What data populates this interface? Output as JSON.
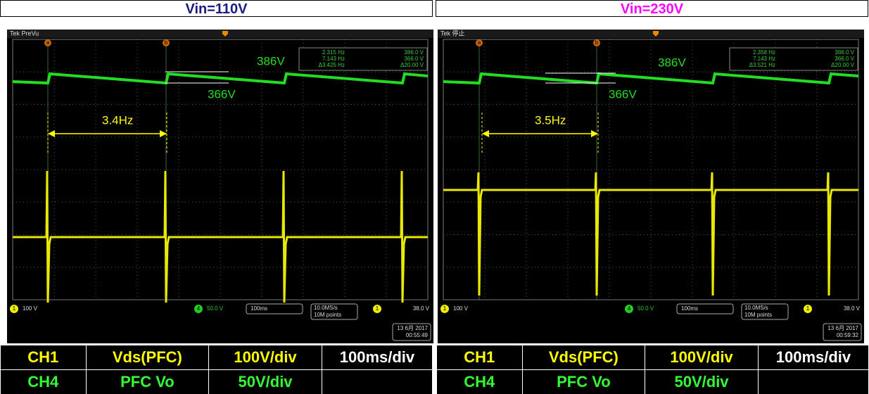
{
  "header": [
    "Vin=110V",
    "Vin=230V"
  ],
  "panels": [
    {
      "status": "Tek PreVu",
      "cursor_labels": [
        "a",
        "b"
      ],
      "cursor_readout": [
        [
          "2.315 Hz",
          "386.0 V"
        ],
        [
          "7.143 Hz",
          "366.0 V"
        ],
        [
          "Δ3.425 Hz",
          "Δ20.00 V"
        ]
      ],
      "annotations": {
        "upper": "386V",
        "lower": "366V",
        "freq": "3.4Hz"
      },
      "bottom": {
        "ch1_badge": "1",
        "ch1": "100 V",
        "ch4_badge": "4",
        "ch4": "50.0 V",
        "timebase": "100ms",
        "rate": "10.0MS/s",
        "points": "10M points",
        "trigger_badge": "1",
        "trigger": "38.0 V",
        "date": "13 6月 2017",
        "time": "00:55:49"
      }
    },
    {
      "status": "Tek 停止",
      "cursor_labels": [
        "a",
        "b"
      ],
      "cursor_readout": [
        [
          "2.358 Hz",
          "386.0 V"
        ],
        [
          "7.143 Hz",
          "366.0 V"
        ],
        [
          "Δ3.521 Hz",
          "Δ20.00 V"
        ]
      ],
      "annotations": {
        "upper": "386V",
        "lower": "366V",
        "freq": "3.5Hz"
      },
      "bottom": {
        "ch1_badge": "1",
        "ch1": "100 V",
        "ch4_badge": "4",
        "ch4": "50.0 V",
        "timebase": "100ms",
        "rate": "10.0MS/s",
        "points": "10M points",
        "trigger_badge": "1",
        "trigger": "38.0 V",
        "date": "13 6月 2017",
        "time": "00:59:32"
      }
    }
  ],
  "table": [
    {
      "rows": [
        [
          "CH1",
          "Vds(PFC)",
          "100V/div",
          "100ms/div"
        ],
        [
          "CH4",
          "PFC Vo",
          "50V/div"
        ]
      ]
    },
    {
      "rows": [
        [
          "CH1",
          "Vds(PFC)",
          "100V/div",
          "100ms/div"
        ],
        [
          "CH4",
          "PFC Vo",
          "50V/div"
        ]
      ]
    }
  ]
}
